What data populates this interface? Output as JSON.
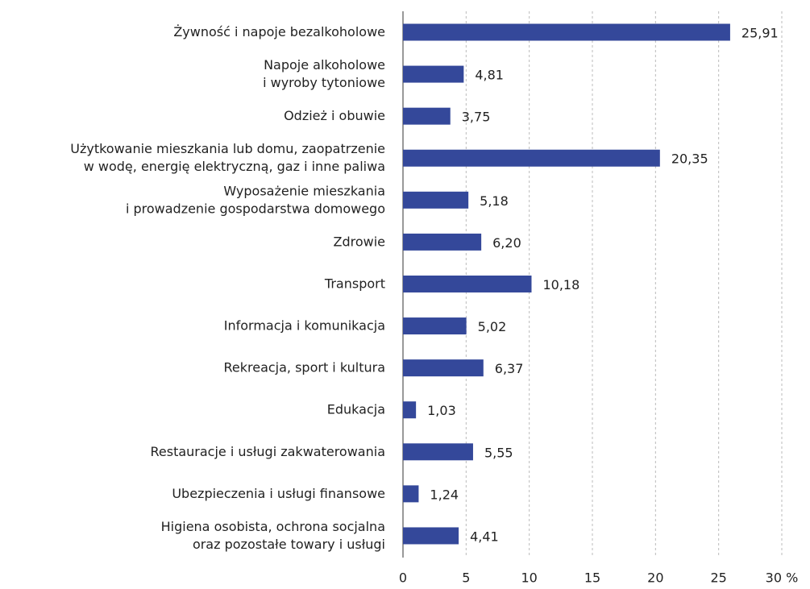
{
  "chart_data": {
    "type": "bar",
    "orientation": "horizontal",
    "categories": [
      [
        "Żywność i napoje bezalkoholowe"
      ],
      [
        "Napoje alkoholowe",
        "i wyroby tytoniowe"
      ],
      [
        "Odzież i obuwie"
      ],
      [
        "Użytkowanie mieszkania lub domu, zaopatrzenie",
        "w wodę, energię elektryczną, gaz i inne paliwa"
      ],
      [
        "Wyposażenie mieszkania",
        "i prowadzenie gospodarstwa domowego"
      ],
      [
        "Zdrowie"
      ],
      [
        "Transport"
      ],
      [
        "Informacja i komunikacja"
      ],
      [
        "Rekreacja, sport i kultura"
      ],
      [
        "Edukacja"
      ],
      [
        "Restauracje i usługi zakwaterowania"
      ],
      [
        "Ubezpieczenia i usługi finansowe"
      ],
      [
        "Higiena osobista, ochrona socjalna",
        "oraz pozostałe towary i usługi"
      ]
    ],
    "values": [
      25.91,
      4.81,
      3.75,
      20.35,
      5.18,
      6.2,
      10.18,
      5.02,
      6.37,
      1.03,
      5.55,
      1.24,
      4.41
    ],
    "value_labels": [
      "25,91",
      "4,81",
      "3,75",
      "20,35",
      "5,18",
      "6,20",
      "10,18",
      "5,02",
      "6,37",
      "1,03",
      "5,55",
      "1,24",
      "4,41"
    ],
    "color": "#34489a",
    "xlim": [
      0,
      30
    ],
    "xticks": [
      0,
      5,
      10,
      15,
      20,
      25,
      {
        "value": 30,
        "label": "30 %"
      }
    ],
    "grid": true
  }
}
